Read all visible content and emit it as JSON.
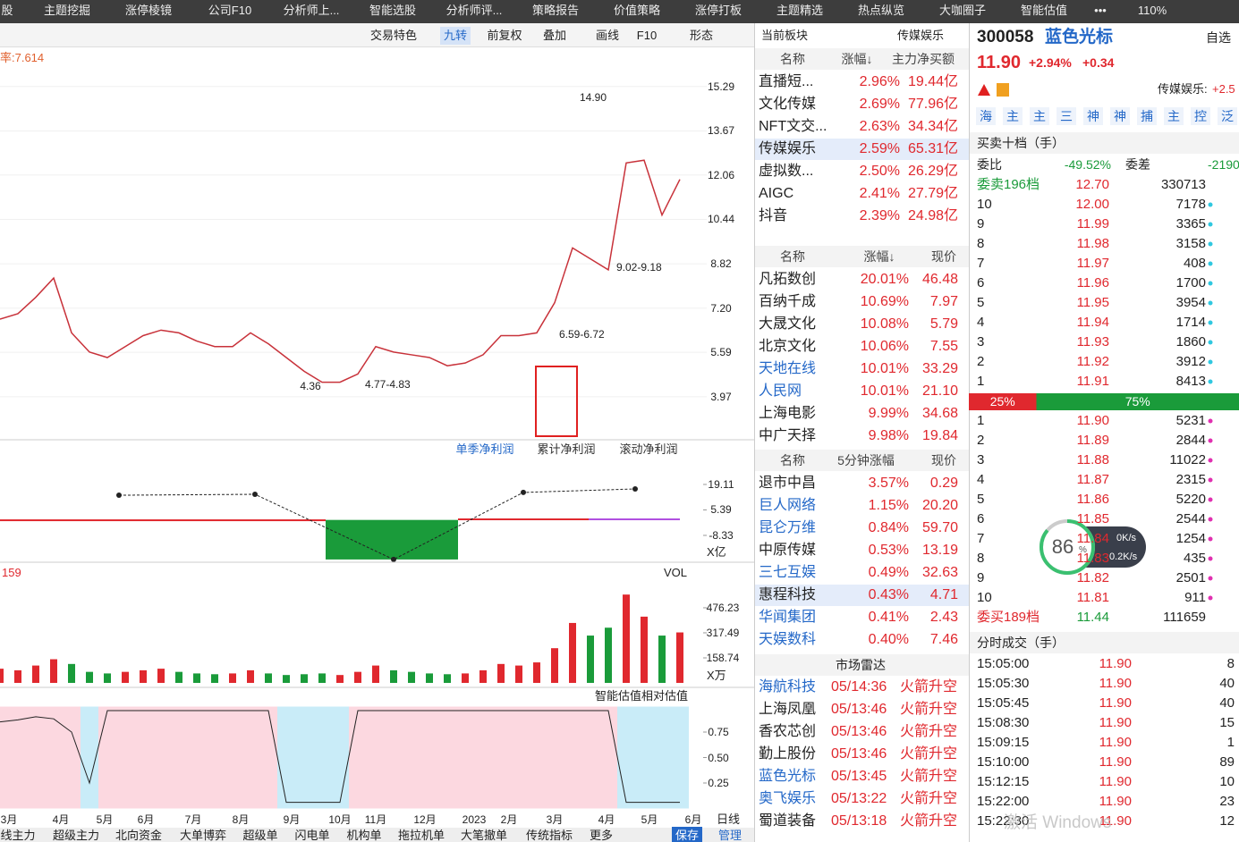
{
  "nav": [
    "股",
    "主题挖掘",
    "涨停棱镜",
    "公司F10",
    "分析师上...",
    "智能选股",
    "分析师评...",
    "策略报告",
    "价值策略",
    "涨停打板",
    "主题精选",
    "热点纵览",
    "大咖圈子",
    "智能估值"
  ],
  "nav_tools": {
    "more": "•••",
    "zoom": "110%"
  },
  "toolbar": [
    "交易特色",
    "九转",
    "前复权",
    "叠加",
    "画线",
    "F10",
    "形态"
  ],
  "price_chart": {
    "type": "line",
    "indicator": "率:7.614",
    "ylim": [
      3.28,
      16.0
    ],
    "yticks": [
      15.29,
      13.67,
      12.06,
      10.44,
      8.82,
      {
        "value": 7.2,
        "label": "7.20"
      },
      5.59,
      3.97
    ],
    "color": "#c8323a",
    "values": [
      6.8,
      7.0,
      7.6,
      8.3,
      6.3,
      5.6,
      5.4,
      5.8,
      6.2,
      6.4,
      6.3,
      6.0,
      5.8,
      5.8,
      6.3,
      5.9,
      5.4,
      4.9,
      4.5,
      4.5,
      4.8,
      5.8,
      5.6,
      5.5,
      5.4,
      5.1,
      5.2,
      5.5,
      6.2,
      6.2,
      6.3,
      7.4,
      9.4,
      9.0,
      8.6,
      12.5,
      12.6,
      10.6,
      11.9
    ],
    "annotations": [
      "14.90",
      "9.02-9.18",
      "6.59-6.72",
      "4.36",
      "4.77-4.83"
    ]
  },
  "profit_chart": {
    "tabs": [
      "单季净利润",
      "累计净利润",
      "滚动净利润"
    ],
    "ylim": [
      -22.3,
      34.5
    ],
    "yticks": [
      19.11,
      5.39,
      -8.33
    ],
    "unit": "X亿",
    "line": [
      13.3,
      13.8,
      -21.3,
      14.8,
      16.7
    ],
    "bars": [
      0.3,
      -21.3,
      0.8,
      0.8
    ]
  },
  "volume_chart": {
    "type": "bar",
    "indicator": "159",
    "label": "VOL",
    "ylim": [
      0,
      646
    ],
    "yticks": [
      476.23,
      317.49,
      158.74
    ],
    "unit": "X万",
    "values": [
      90,
      80,
      110,
      150,
      120,
      70,
      60,
      70,
      80,
      90,
      70,
      60,
      55,
      60,
      80,
      60,
      50,
      55,
      60,
      50,
      70,
      110,
      80,
      70,
      60,
      55,
      60,
      80,
      120,
      110,
      130,
      220,
      380,
      300,
      350,
      560,
      420,
      300,
      320
    ]
  },
  "valuation_chart": {
    "title": "智能估值相对估值",
    "ylim": [
      0,
      1
    ],
    "yticks": [
      0.75,
      {
        "value": 0.5,
        "label": "0.50"
      },
      0.25
    ],
    "values": [
      0.85,
      0.87,
      0.9,
      0.88,
      0.75,
      0.25,
      0.96,
      0.96,
      0.96,
      0.96,
      0.96,
      0.96,
      0.96,
      0.96,
      0.96,
      0.96,
      0.06,
      0.06,
      0.06,
      0.06,
      0.96,
      0.96,
      0.96,
      0.96,
      0.96,
      0.96,
      0.96,
      0.96,
      0.96,
      0.96,
      0.96,
      0.96,
      0.96,
      0.96,
      0.96,
      0.06,
      0.06,
      0.06,
      0.06
    ]
  },
  "months": [
    "3月",
    "4月",
    "5月",
    "6月",
    "7月",
    "8月",
    "9月",
    "10月",
    "11月",
    "12月",
    "2023",
    "2月",
    "3月",
    "4月",
    "5月",
    "6月"
  ],
  "period": "日线",
  "bottom_tabs": [
    "线主力",
    "超级主力",
    "北向资金",
    "大单博弈",
    "超级单",
    "闪电单",
    "机构单",
    "拖拉机单",
    "大笔撤单",
    "传统指标",
    "更多"
  ],
  "bottom_buttons": [
    "保存",
    "管理"
  ],
  "sector_panel": {
    "title": "当前板块",
    "sector": "传媒娱乐",
    "headers": [
      "名称",
      "涨幅↓",
      "主力净买额"
    ],
    "highlight": [
      3
    ],
    "links": [],
    "rows": [
      [
        "直播短...",
        "2.96%",
        "19.44亿"
      ],
      [
        "文化传媒",
        "2.69%",
        "77.96亿"
      ],
      [
        "NFT文交...",
        "2.63%",
        "34.34亿"
      ],
      [
        "传媒娱乐",
        "2.59%",
        "65.31亿"
      ],
      [
        "虚拟数...",
        "2.50%",
        "26.29亿"
      ],
      [
        "AIGC",
        "2.41%",
        "27.79亿"
      ],
      [
        "抖音",
        "2.39%",
        "24.98亿"
      ]
    ]
  },
  "stocks_table": {
    "headers": [
      "名称",
      "涨幅↓",
      "现价"
    ],
    "highlight": [],
    "links": [
      4,
      5
    ],
    "rows": [
      [
        "凡拓数创",
        "20.01%",
        "46.48"
      ],
      [
        "百纳千成",
        "10.69%",
        "7.97"
      ],
      [
        "大晟文化",
        "10.08%",
        "5.79"
      ],
      [
        "北京文化",
        "10.06%",
        "7.55"
      ],
      [
        "天地在线",
        "10.01%",
        "33.29"
      ],
      [
        "人民网",
        "10.01%",
        "21.10"
      ],
      [
        "上海电影",
        "9.99%",
        "34.68"
      ],
      [
        "中广天择",
        "9.98%",
        "19.84"
      ]
    ]
  },
  "fast_table": {
    "headers": [
      "名称",
      "5分钟涨幅",
      "现价"
    ],
    "highlight": [
      5
    ],
    "links": [
      1,
      2,
      4,
      6,
      7
    ],
    "rows": [
      [
        "退市中昌",
        "3.57%",
        "0.29"
      ],
      [
        "巨人网络",
        "1.15%",
        "20.20"
      ],
      [
        "昆仑万维",
        "0.84%",
        "59.70"
      ],
      [
        "中原传媒",
        "0.53%",
        "13.19"
      ],
      [
        "三七互娱",
        "0.49%",
        "32.63"
      ],
      [
        "惠程科技",
        "0.43%",
        "4.71"
      ],
      [
        "华闻集团",
        "0.41%",
        "2.43"
      ],
      [
        "天娱数科",
        "0.40%",
        "7.46"
      ]
    ]
  },
  "radar": {
    "title": "市场雷达",
    "links": [
      0,
      4,
      5
    ],
    "rows": [
      [
        "海航科技",
        "05/14:36",
        "火箭升空"
      ],
      [
        "上海凤凰",
        "05/13:46",
        "火箭升空"
      ],
      [
        "香农芯创",
        "05/13:46",
        "火箭升空"
      ],
      [
        "勤上股份",
        "05/13:46",
        "火箭升空"
      ],
      [
        "蓝色光标",
        "05/13:45",
        "火箭升空"
      ],
      [
        "奥飞娱乐",
        "05/13:22",
        "火箭升空"
      ],
      [
        "蜀道装备",
        "05/13:18",
        "火箭升空"
      ]
    ]
  },
  "quote": {
    "code": "300058",
    "name": "蓝色光标",
    "price": "11.90",
    "change_pct": "+2.94%",
    "change": "+0.34",
    "watch": "自选",
    "sector_label": "传媒娱乐:",
    "sector_change": "+2.5",
    "tags": [
      "海",
      "主",
      "主",
      "三",
      "神",
      "神",
      "捕",
      "主",
      "控",
      "泛"
    ]
  },
  "order_book": {
    "title": "买卖十档（手）",
    "ratio_label": "委比",
    "ratio": "-49.52%",
    "diff_label": "委差",
    "diff": "-2190",
    "sell_total": [
      "委卖196档",
      "12.70",
      "330713"
    ],
    "sells": [
      [
        "10",
        "12.00",
        "7178"
      ],
      [
        "9",
        "11.99",
        "3365"
      ],
      [
        "8",
        "11.98",
        "3158"
      ],
      [
        "7",
        "11.97",
        "408"
      ],
      [
        "6",
        "11.96",
        "1700"
      ],
      [
        "5",
        "11.95",
        "3954"
      ],
      [
        "4",
        "11.94",
        "1714"
      ],
      [
        "3",
        "11.93",
        "1860"
      ],
      [
        "2",
        "11.92",
        "3912"
      ],
      [
        "1",
        "11.91",
        "8413"
      ]
    ],
    "split": [
      {
        "value": 25,
        "label": "25%"
      },
      {
        "value": 75,
        "label": "75%"
      }
    ],
    "buys": [
      [
        "1",
        "11.90",
        "5231"
      ],
      [
        "2",
        "11.89",
        "2844"
      ],
      [
        "3",
        "11.88",
        "11022"
      ],
      [
        "4",
        "11.87",
        "2315"
      ],
      [
        "5",
        "11.86",
        "5220"
      ],
      [
        "6",
        "11.85",
        "2544"
      ],
      [
        "7",
        "11.84",
        "1254"
      ],
      [
        "8",
        "11.83",
        "435"
      ],
      [
        "9",
        "11.82",
        "2501"
      ],
      [
        "10",
        "11.81",
        "911"
      ]
    ],
    "buy_total": [
      "委买189档",
      "11.44",
      "111659"
    ]
  },
  "trades": {
    "title": "分时成交（手）",
    "rows": [
      [
        "15:05:00",
        "11.90",
        "8"
      ],
      [
        "15:05:30",
        "11.90",
        "40"
      ],
      [
        "15:05:45",
        "11.90",
        "40"
      ],
      [
        "15:08:30",
        "11.90",
        "15"
      ],
      [
        "15:09:15",
        "11.90",
        "1"
      ],
      [
        "15:10:00",
        "11.90",
        "89"
      ],
      [
        "15:12:15",
        "11.90",
        "10"
      ],
      [
        "15:22:00",
        "11.90",
        "23"
      ],
      [
        "15:22:30",
        "11.90",
        "12"
      ]
    ]
  },
  "gauge": {
    "value": 86,
    "unit": "%",
    "up": "0K/s",
    "down": "0.2K/s"
  },
  "watermark": "激活 Windows"
}
